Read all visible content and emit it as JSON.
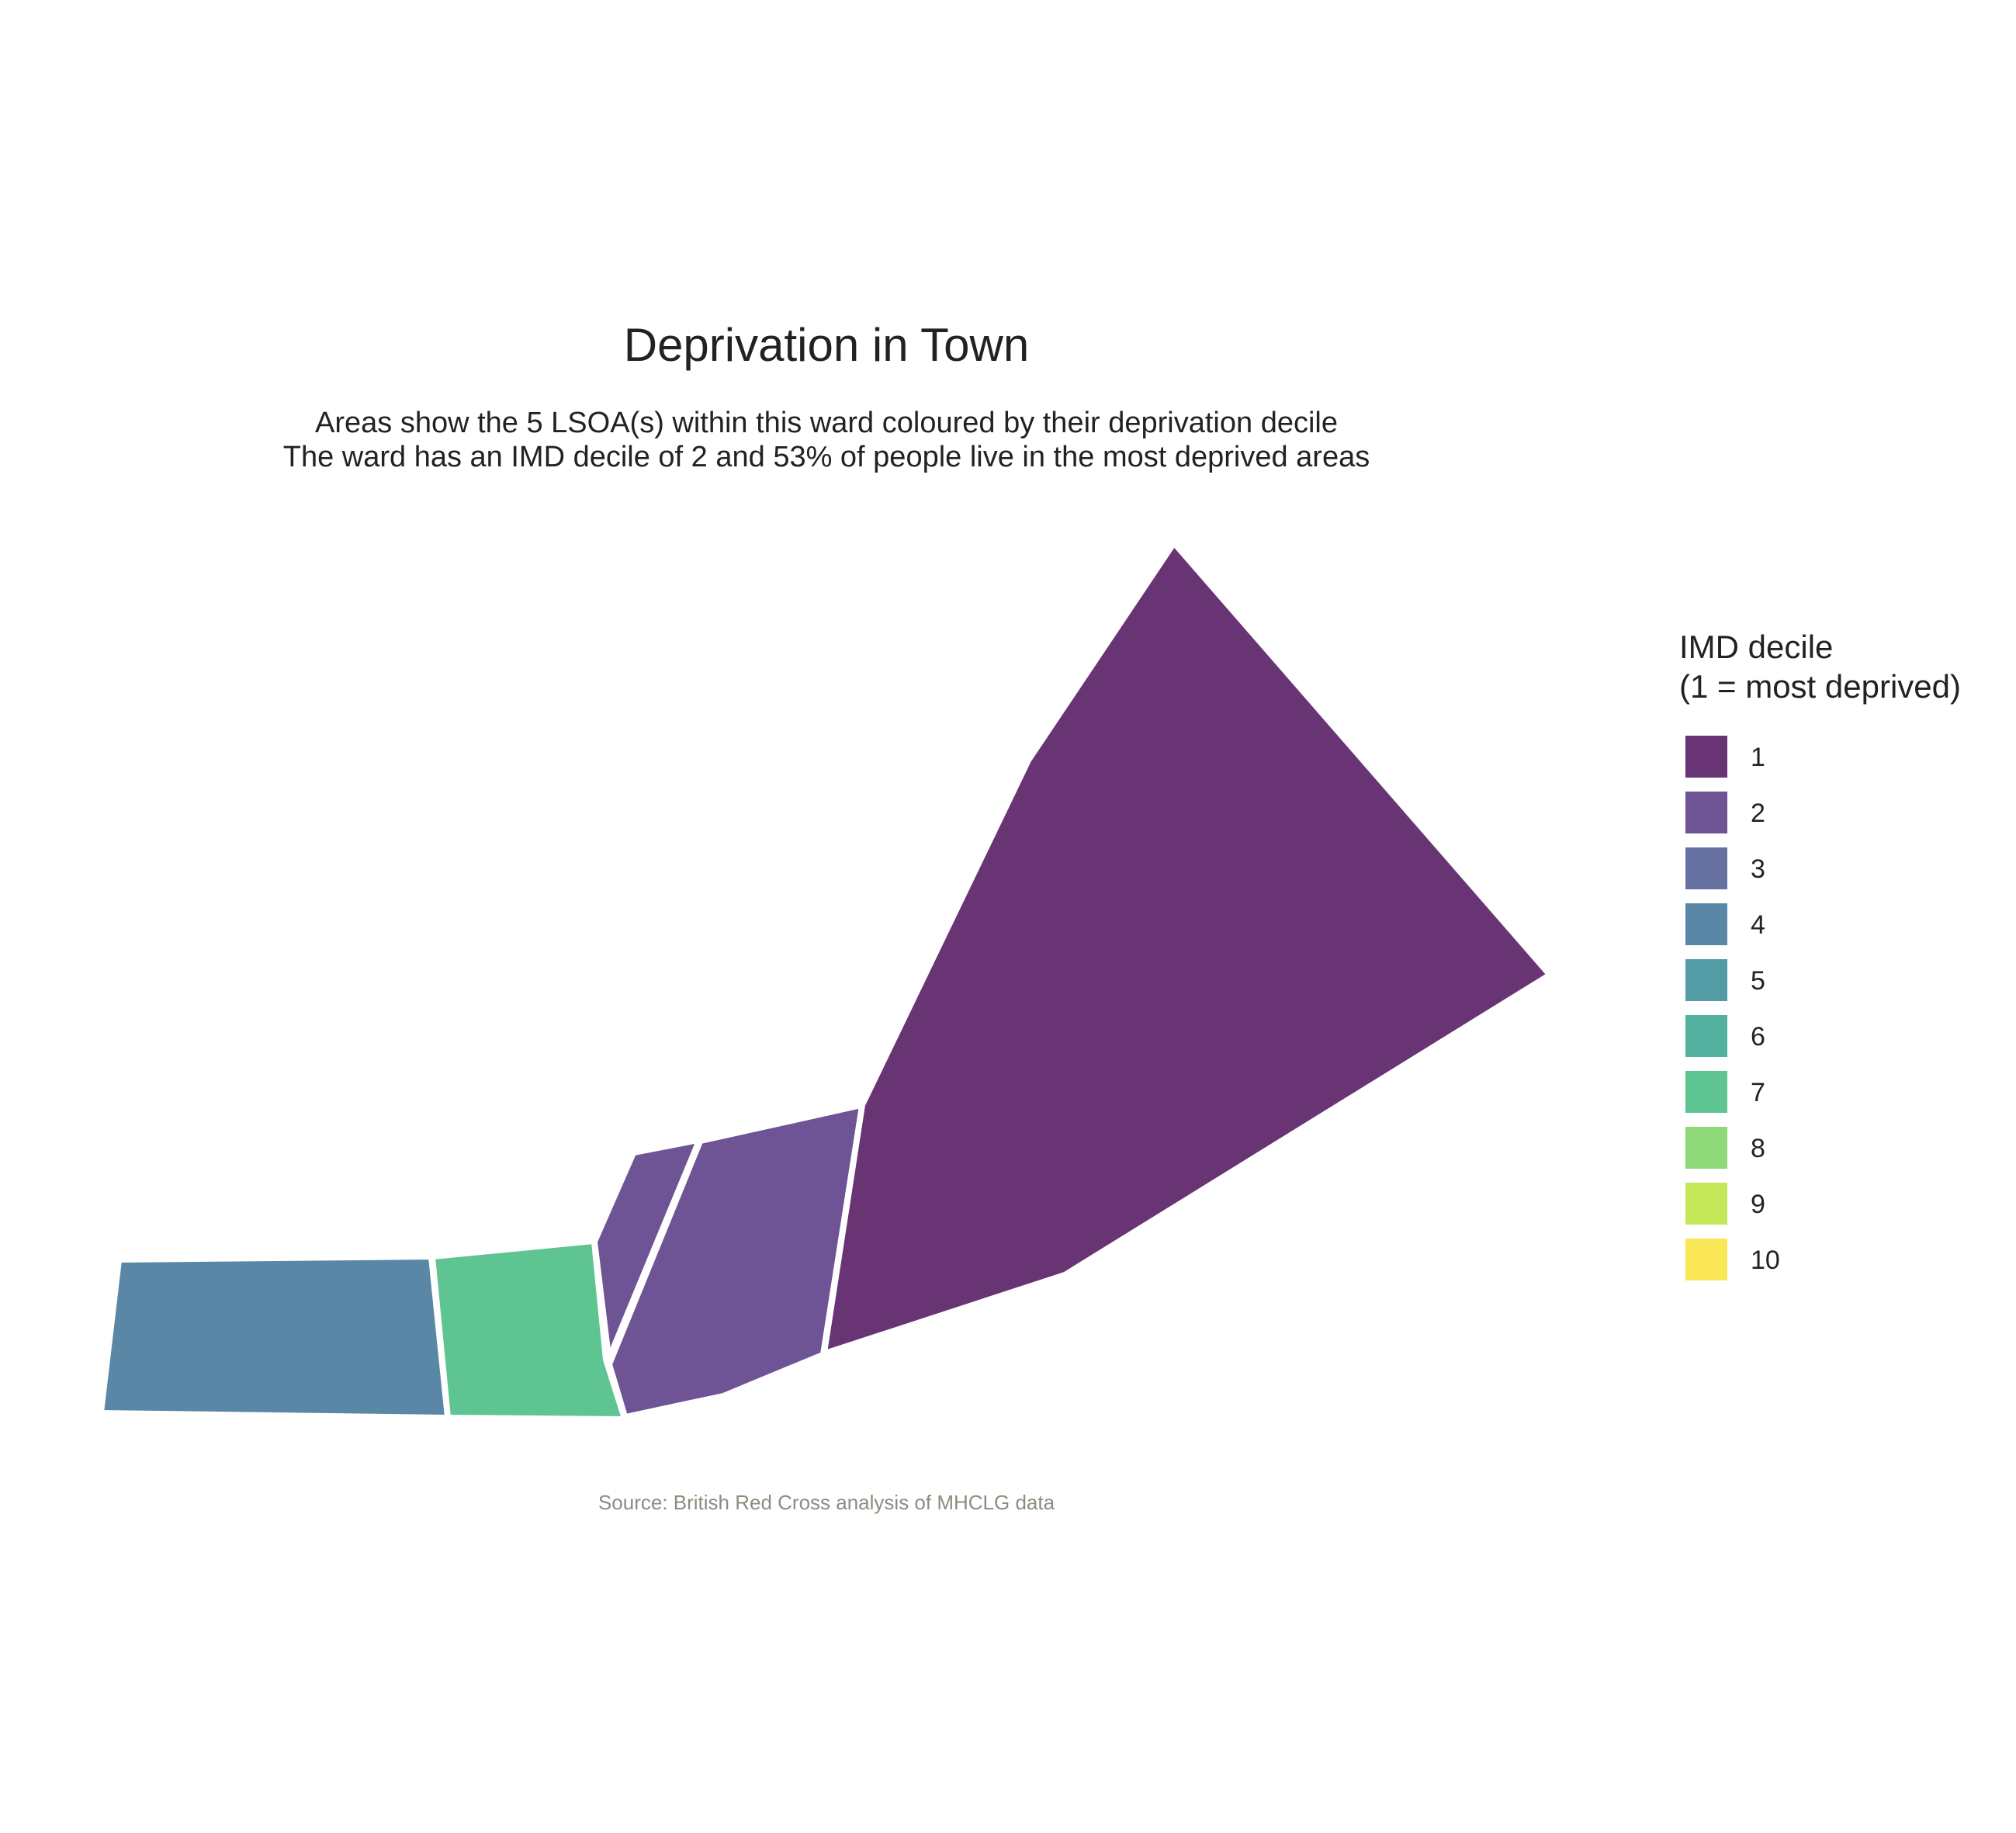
{
  "map": {
    "title": "Deprivation in Town",
    "subtitle_lines": [
      "Areas show the 5 LSOA(s) within this ward coloured by their deprivation decile",
      "The ward has an IMD decile of 2 and 53% of people live in the most deprived areas"
    ],
    "caption": "Source: British Red Cross analysis of MHCLG data",
    "areas": [
      {
        "imd_decile": 4,
        "color": "#5a87a6"
      },
      {
        "imd_decile": 7,
        "color": "#5ec492"
      },
      {
        "imd_decile": 2,
        "color": "#6e5494"
      },
      {
        "imd_decile": 2,
        "color": "#6e5494"
      },
      {
        "imd_decile": 1,
        "color": "#693474"
      }
    ],
    "boundary_color": "#ffffff"
  },
  "legend": {
    "title_lines": [
      "IMD decile",
      "(1 = most deprived)"
    ],
    "items": [
      {
        "label": "1",
        "color": "#693474"
      },
      {
        "label": "2",
        "color": "#6e5494"
      },
      {
        "label": "3",
        "color": "#6771a1"
      },
      {
        "label": "4",
        "color": "#5a87a6"
      },
      {
        "label": "5",
        "color": "#539ba5"
      },
      {
        "label": "6",
        "color": "#52b19f"
      },
      {
        "label": "7",
        "color": "#5ec492"
      },
      {
        "label": "8",
        "color": "#8fd97b"
      },
      {
        "label": "9",
        "color": "#c4e659"
      },
      {
        "label": "10",
        "color": "#f9e755"
      }
    ]
  }
}
